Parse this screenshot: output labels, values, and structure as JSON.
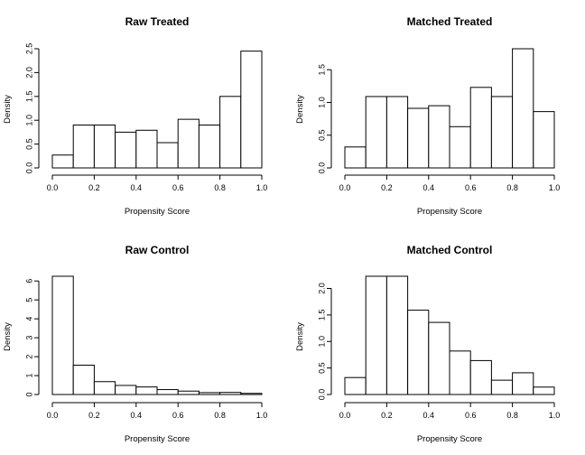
{
  "chart_data": [
    {
      "type": "bar",
      "title": "Raw Treated",
      "xlabel": "Propensity Score",
      "ylabel": "Density",
      "bin_edges": [
        0,
        0.1,
        0.2,
        0.3,
        0.4,
        0.5,
        0.6,
        0.7,
        0.8,
        0.9,
        1.0
      ],
      "values": [
        0.27,
        0.9,
        0.9,
        0.75,
        0.79,
        0.53,
        1.02,
        0.9,
        1.5,
        2.45
      ],
      "xlim": [
        0,
        1
      ],
      "ylim": [
        0,
        2.5
      ],
      "xticks": [
        "0.0",
        "0.2",
        "0.4",
        "0.6",
        "0.8",
        "1.0"
      ],
      "yticks": [
        "0.0",
        "0.5",
        "1.0",
        "1.5",
        "2.0",
        "2.5"
      ],
      "ytick_values": [
        0,
        0.5,
        1.0,
        1.5,
        2.0,
        2.5
      ],
      "grid": false
    },
    {
      "type": "bar",
      "title": "Matched Treated",
      "xlabel": "Propensity Score",
      "ylabel": "Density",
      "bin_edges": [
        0,
        0.1,
        0.2,
        0.3,
        0.4,
        0.5,
        0.6,
        0.7,
        0.8,
        0.9,
        1.0
      ],
      "values": [
        0.32,
        1.09,
        1.09,
        0.91,
        0.95,
        0.63,
        1.23,
        1.09,
        1.82,
        0.86
      ],
      "xlim": [
        0,
        1
      ],
      "ylim": [
        0,
        1.82
      ],
      "xticks": [
        "0.0",
        "0.2",
        "0.4",
        "0.6",
        "0.8",
        "1.0"
      ],
      "yticks": [
        "0.0",
        "0.5",
        "1.0",
        "1.5"
      ],
      "ytick_values": [
        0,
        0.5,
        1.0,
        1.5
      ],
      "grid": false
    },
    {
      "type": "bar",
      "title": "Raw Control",
      "xlabel": "Propensity Score",
      "ylabel": "Density",
      "bin_edges": [
        0,
        0.1,
        0.2,
        0.3,
        0.4,
        0.5,
        0.6,
        0.7,
        0.8,
        0.9,
        1.0
      ],
      "values": [
        6.25,
        1.55,
        0.68,
        0.48,
        0.4,
        0.26,
        0.18,
        0.1,
        0.11,
        0.06
      ],
      "xlim": [
        0,
        1
      ],
      "ylim": [
        0,
        6.25
      ],
      "xticks": [
        "0.0",
        "0.2",
        "0.4",
        "0.6",
        "0.8",
        "1.0"
      ],
      "yticks": [
        "0",
        "1",
        "2",
        "3",
        "4",
        "5",
        "6"
      ],
      "ytick_values": [
        0,
        1,
        2,
        3,
        4,
        5,
        6
      ],
      "grid": false
    },
    {
      "type": "bar",
      "title": "Matched Control",
      "xlabel": "Propensity Score",
      "ylabel": "Density",
      "bin_edges": [
        0,
        0.1,
        0.2,
        0.3,
        0.4,
        0.5,
        0.6,
        0.7,
        0.8,
        0.9,
        1.0
      ],
      "values": [
        0.32,
        2.23,
        2.23,
        1.59,
        1.36,
        0.82,
        0.64,
        0.27,
        0.41,
        0.14
      ],
      "xlim": [
        0,
        1
      ],
      "ylim": [
        0,
        2.23
      ],
      "xticks": [
        "0.0",
        "0.2",
        "0.4",
        "0.6",
        "0.8",
        "1.0"
      ],
      "yticks": [
        "0.0",
        "0.5",
        "1.0",
        "1.5",
        "2.0"
      ],
      "ytick_values": [
        0,
        0.5,
        1.0,
        1.5,
        2.0
      ],
      "grid": false
    }
  ]
}
